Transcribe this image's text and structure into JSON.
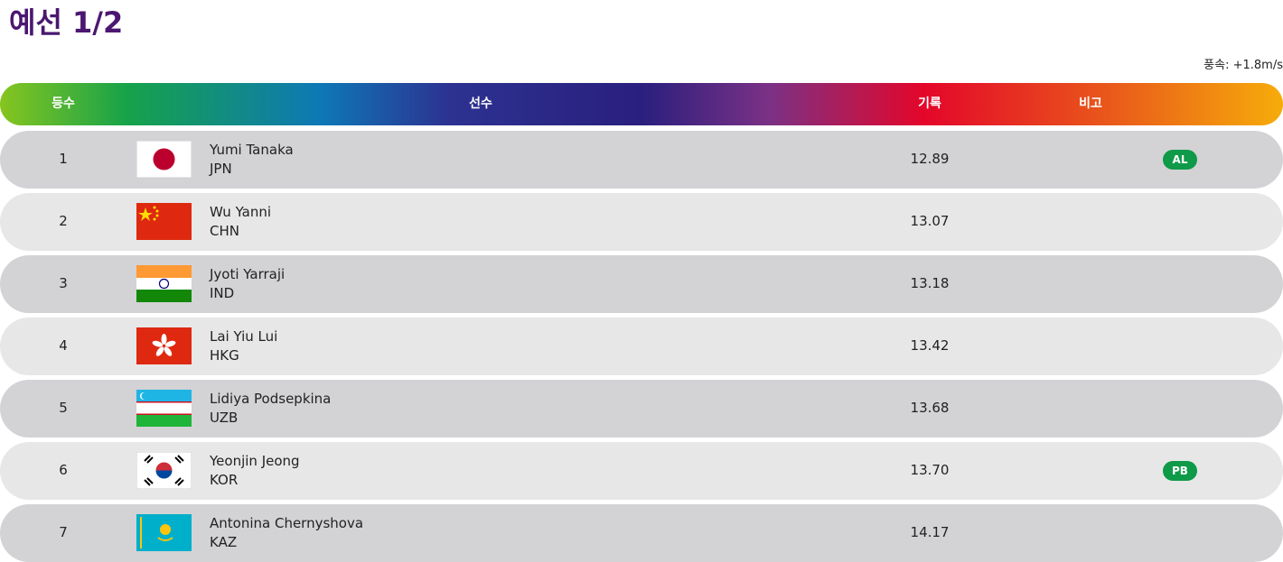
{
  "header": {
    "title": "예선 1/2",
    "wind": "풍속: +1.8m/s"
  },
  "table": {
    "columns": [
      "등수",
      "선수",
      "기록",
      "비고"
    ],
    "rows": [
      {
        "rank": "1",
        "name": "Yumi Tanaka",
        "country": "JPN",
        "record": "12.89",
        "note": "AL"
      },
      {
        "rank": "2",
        "name": "Wu Yanni",
        "country": "CHN",
        "record": "13.07"
      },
      {
        "rank": "3",
        "name": "Jyoti Yarraji",
        "country": "IND",
        "record": "13.18"
      },
      {
        "rank": "4",
        "name": "Lai Yiu Lui",
        "country": "HKG",
        "record": "13.42"
      },
      {
        "rank": "5",
        "name": "Lidiya Podsepkina",
        "country": "UZB",
        "record": "13.68"
      },
      {
        "rank": "6",
        "name": "Yeonjin Jeong",
        "country": "KOR",
        "record": "13.70",
        "note": "PB"
      },
      {
        "rank": "7",
        "name": "Antonina Chernyshova",
        "country": "KAZ",
        "record": "14.17"
      }
    ]
  }
}
